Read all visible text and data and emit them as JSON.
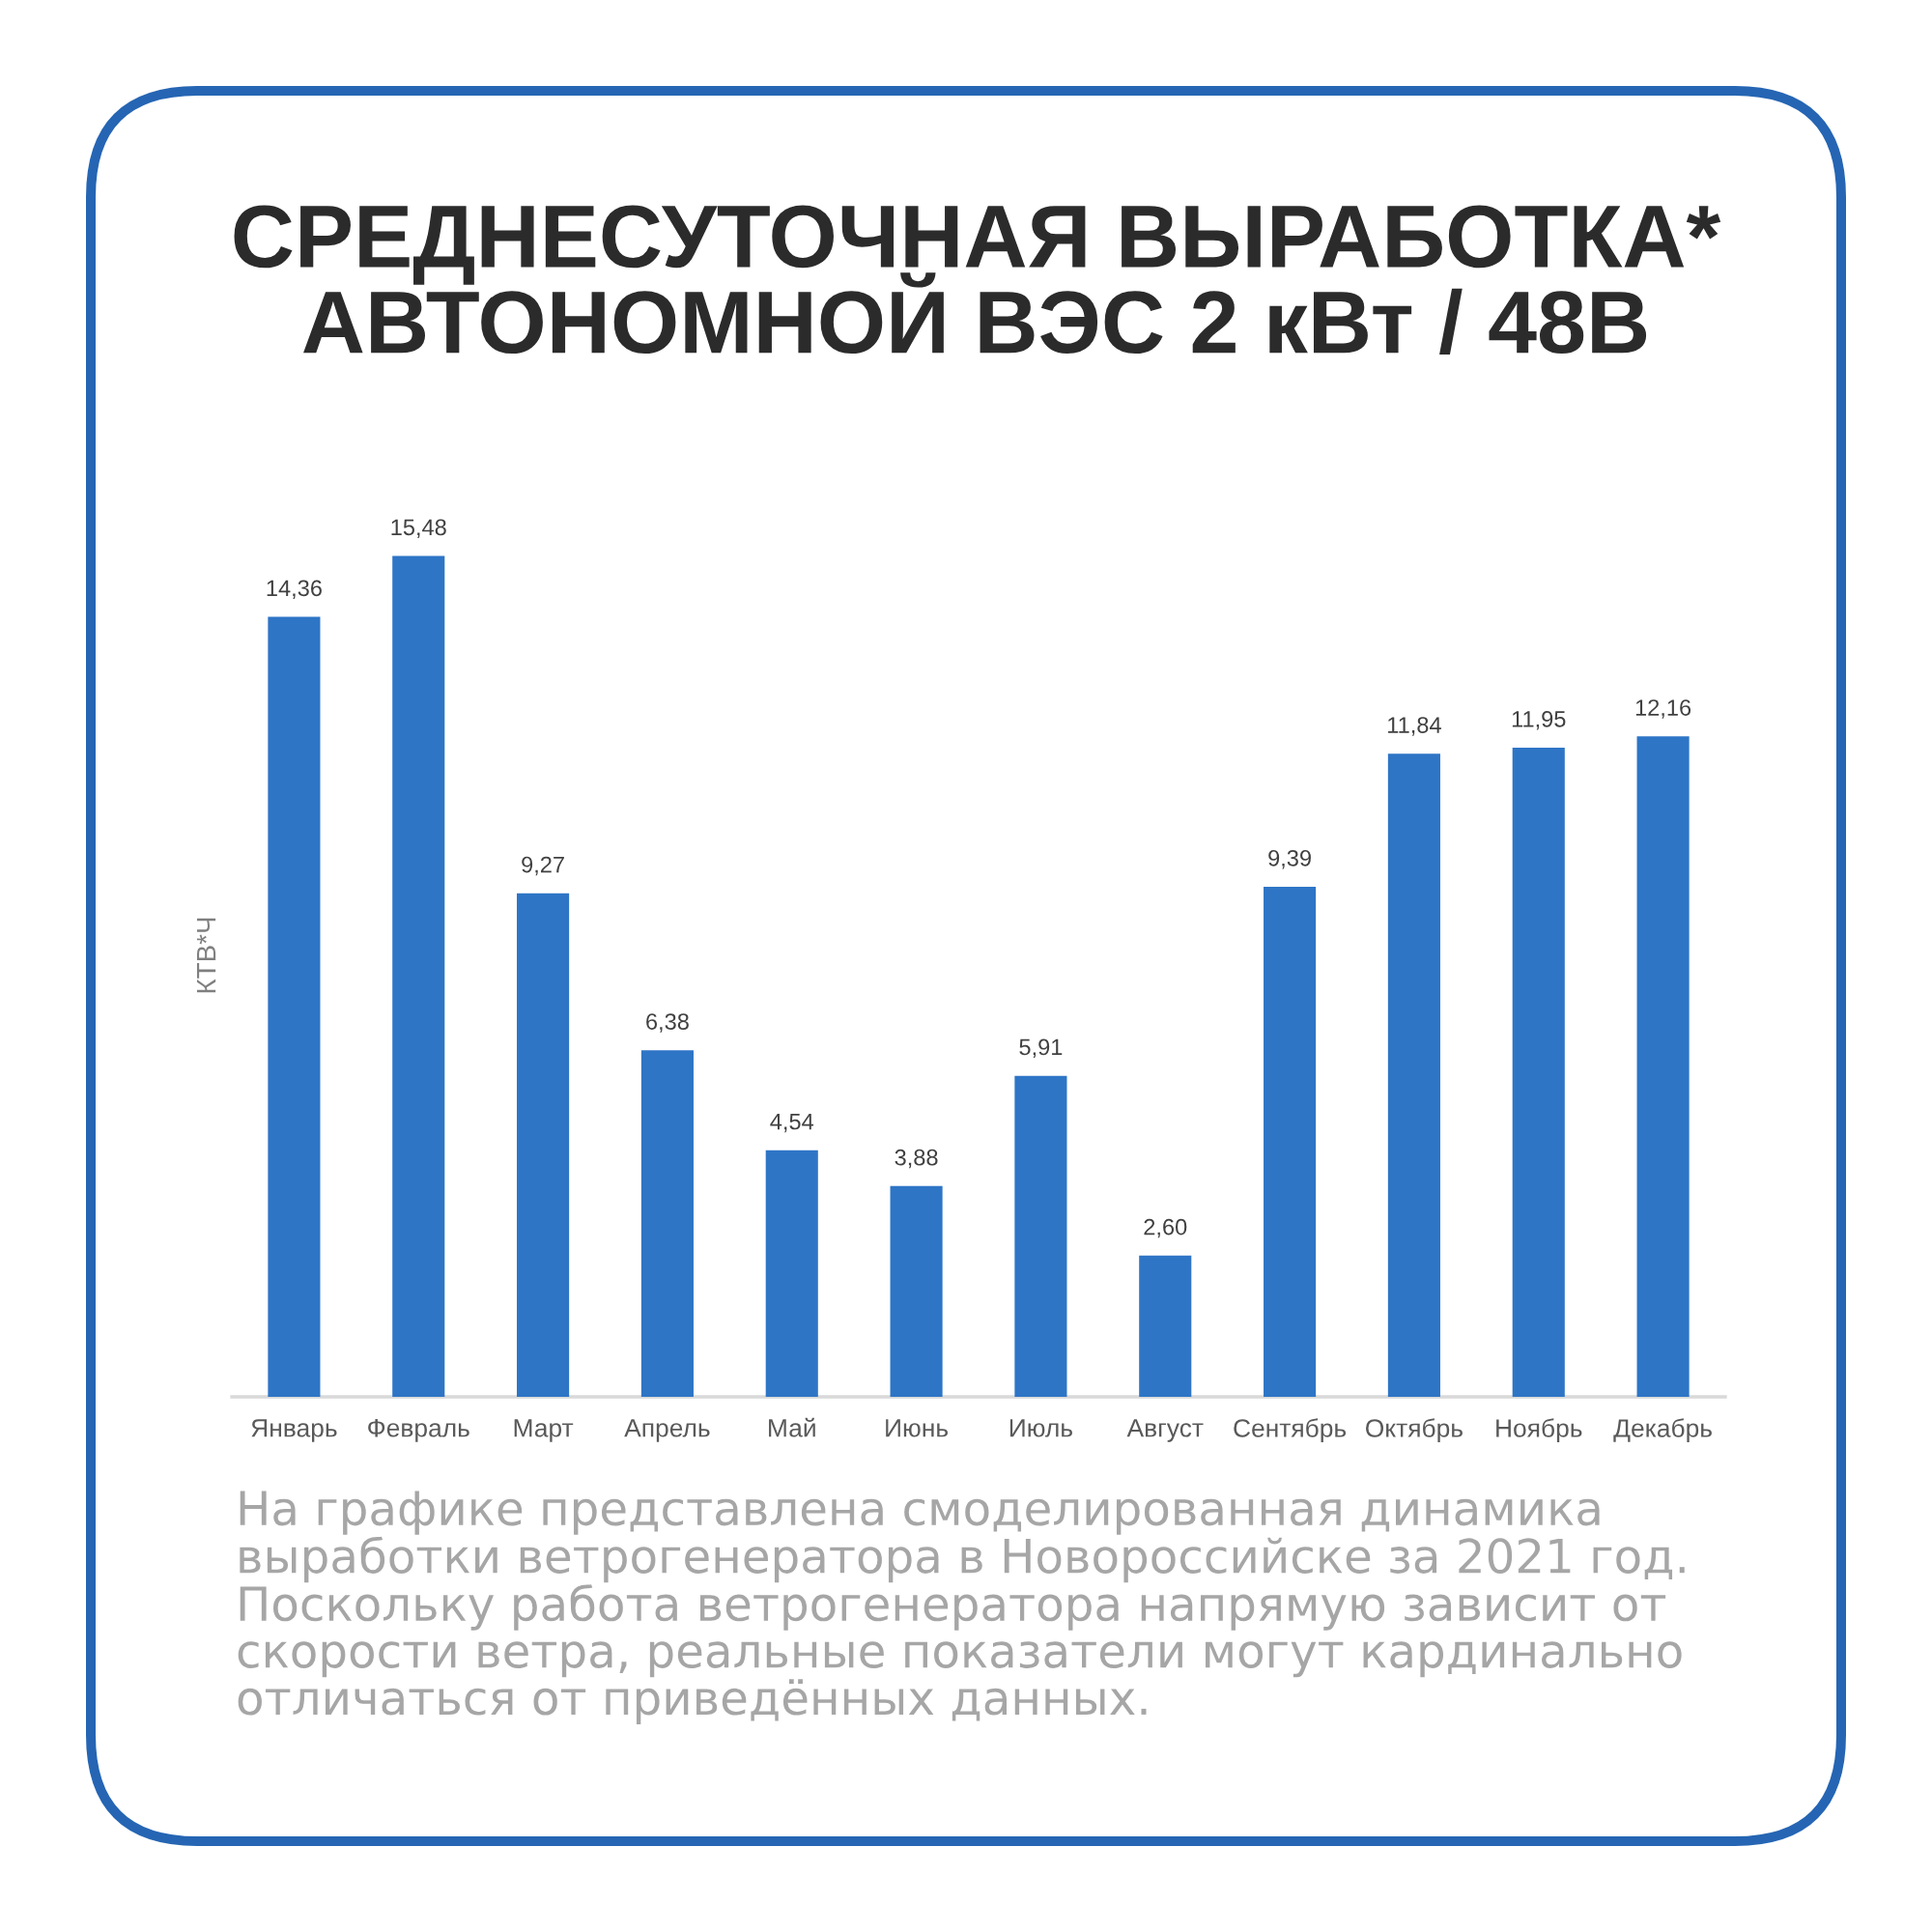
{
  "chart_data": {
    "type": "bar",
    "title": "СРЕДНЕСУТОЧНАЯ ВЫРАБОТКА*\nАВТОНОМНОЙ ВЭС 2 кВт / 48В",
    "ylabel": "КТВ*Ч",
    "categories": [
      "Январь",
      "Февраль",
      "Март",
      "Апрель",
      "Май",
      "Июнь",
      "Июль",
      "Август",
      "Сентябрь",
      "Октябрь",
      "Ноябрь",
      "Декабрь"
    ],
    "values": [
      14.36,
      15.48,
      9.27,
      6.38,
      4.54,
      3.88,
      5.91,
      2.6,
      9.39,
      11.84,
      11.95,
      12.16
    ],
    "value_labels": [
      "14,36",
      "15,48",
      "9,27",
      "6,38",
      "4,54",
      "3,88",
      "5,91",
      "2,60",
      "9,39",
      "11,84",
      "11,95",
      "12,16"
    ],
    "color": "#2e75c6",
    "tick_labels": "x",
    "grid": false,
    "annotations": [
      "На графике представлена смоделированная динамика\nвыработки ветрогенератора в Новороссийске за 2021 год.\nПоскольку работа ветрогенератора напрямую зависит от\nскорости ветра, реальные показатели могут кардинально\nотличаться от приведённых данных."
    ]
  }
}
